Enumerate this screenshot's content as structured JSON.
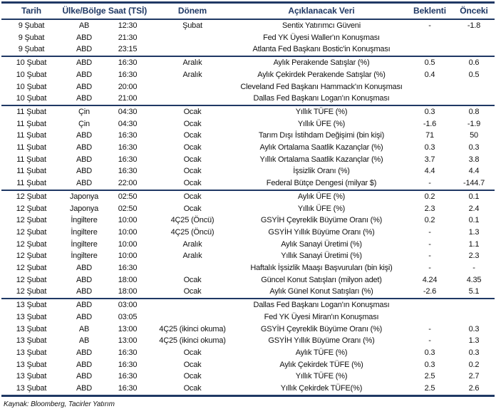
{
  "colors": {
    "navy": "#1F3864",
    "text": "#111111",
    "background": "#ffffff"
  },
  "table": {
    "column_keys": [
      "tarih",
      "ulke-bolge",
      "saat",
      "donem",
      "veri",
      "beklenti",
      "onceki"
    ],
    "columns": [
      "Tarih",
      "Ülke/Bölge",
      "Saat (TSİ)",
      "Dönem",
      "Açıklanacak Veri",
      "Beklenti",
      "Önceki"
    ],
    "rows": [
      {
        "group_start": false,
        "cells": [
          "9 Şubat",
          "AB",
          "12:30",
          "Şubat",
          "Sentix Yatırımcı Güveni",
          "-",
          "-1.8"
        ]
      },
      {
        "group_start": false,
        "cells": [
          "9 Şubat",
          "ABD",
          "21:30",
          "",
          "Fed YK Üyesi Waller'ın Konuşması",
          "",
          ""
        ]
      },
      {
        "group_start": false,
        "cells": [
          "9 Şubat",
          "ABD",
          "23:15",
          "",
          "Atlanta Fed Başkanı Bostic'in Konuşması",
          "",
          ""
        ]
      },
      {
        "group_start": true,
        "cells": [
          "10 Şubat",
          "ABD",
          "16:30",
          "Aralık",
          "Aylık Perakende Satışlar (%)",
          "0.5",
          "0.6"
        ]
      },
      {
        "group_start": false,
        "cells": [
          "10 Şubat",
          "ABD",
          "16:30",
          "Aralık",
          "Aylık Çekirdek Perakende Satışlar (%)",
          "0.4",
          "0.5"
        ]
      },
      {
        "group_start": false,
        "cells": [
          "10 Şubat",
          "ABD",
          "20:00",
          "",
          "Cleveland Fed Başkanı Hammack'ın Konuşması",
          "",
          ""
        ]
      },
      {
        "group_start": false,
        "cells": [
          "10 Şubat",
          "ABD",
          "21:00",
          "",
          "Dallas Fed Başkanı Logan'ın Konuşması",
          "",
          ""
        ]
      },
      {
        "group_start": true,
        "cells": [
          "11 Şubat",
          "Çin",
          "04:30",
          "Ocak",
          "Yıllık TÜFE (%)",
          "0.3",
          "0.8"
        ]
      },
      {
        "group_start": false,
        "cells": [
          "11 Şubat",
          "Çin",
          "04:30",
          "Ocak",
          "Yıllık ÜFE (%)",
          "-1.6",
          "-1.9"
        ]
      },
      {
        "group_start": false,
        "cells": [
          "11 Şubat",
          "ABD",
          "16:30",
          "Ocak",
          "Tarım Dışı İstihdam Değişimi (bin kişi)",
          "71",
          "50"
        ]
      },
      {
        "group_start": false,
        "cells": [
          "11 Şubat",
          "ABD",
          "16:30",
          "Ocak",
          "Aylık Ortalama Saatlik Kazançlar (%)",
          "0.3",
          "0.3"
        ]
      },
      {
        "group_start": false,
        "cells": [
          "11 Şubat",
          "ABD",
          "16:30",
          "Ocak",
          "Yıllık Ortalama Saatlik Kazançlar (%)",
          "3.7",
          "3.8"
        ]
      },
      {
        "group_start": false,
        "cells": [
          "11 Şubat",
          "ABD",
          "16:30",
          "Ocak",
          "İşsizlik Oranı (%)",
          "4.4",
          "4.4"
        ]
      },
      {
        "group_start": false,
        "cells": [
          "11 Şubat",
          "ABD",
          "22:00",
          "Ocak",
          "Federal Bütçe Dengesi (milyar $)",
          "-",
          "-144.7"
        ]
      },
      {
        "group_start": true,
        "cells": [
          "12 Şubat",
          "Japonya",
          "02:50",
          "Ocak",
          "Aylık ÜFE (%)",
          "0.2",
          "0.1"
        ]
      },
      {
        "group_start": false,
        "cells": [
          "12 Şubat",
          "Japonya",
          "02:50",
          "Ocak",
          "Yıllık ÜFE (%)",
          "2.3",
          "2.4"
        ]
      },
      {
        "group_start": false,
        "cells": [
          "12 Şubat",
          "İngiltere",
          "10:00",
          "4Ç25 (Öncü)",
          "GSYİH Çeyreklik Büyüme Oranı (%)",
          "0.2",
          "0.1"
        ]
      },
      {
        "group_start": false,
        "cells": [
          "12 Şubat",
          "İngiltere",
          "10:00",
          "4Ç25 (Öncü)",
          "GSYİH Yıllık Büyüme Oranı (%)",
          "-",
          "1.3"
        ]
      },
      {
        "group_start": false,
        "cells": [
          "12 Şubat",
          "İngiltere",
          "10:00",
          "Aralık",
          "Aylık Sanayi Üretimi (%)",
          "-",
          "1.1"
        ]
      },
      {
        "group_start": false,
        "cells": [
          "12 Şubat",
          "İngiltere",
          "10:00",
          "Aralık",
          "Yıllık Sanayi Üretimi (%)",
          "-",
          "2.3"
        ]
      },
      {
        "group_start": false,
        "cells": [
          "12 Şubat",
          "ABD",
          "16:30",
          "",
          "Haftalık İşsizlik Maaşı Başvuruları (bin kişi)",
          "-",
          "-"
        ]
      },
      {
        "group_start": false,
        "cells": [
          "12 Şubat",
          "ABD",
          "18:00",
          "Ocak",
          "Güncel Konut Satışları (milyon adet)",
          "4.24",
          "4.35"
        ]
      },
      {
        "group_start": false,
        "cells": [
          "12 Şubat",
          "ABD",
          "18:00",
          "Ocak",
          "Aylık Günel Konut Satışları (%)",
          "-2.6",
          "5.1"
        ]
      },
      {
        "group_start": true,
        "cells": [
          "13 Şubat",
          "ABD",
          "03:00",
          "",
          "Dallas Fed Başkanı Logan'ın Konuşması",
          "",
          ""
        ]
      },
      {
        "group_start": false,
        "cells": [
          "13 Şubat",
          "ABD",
          "03:05",
          "",
          "Fed YK Üyesi Miran'ın Konuşması",
          "",
          ""
        ]
      },
      {
        "group_start": false,
        "cells": [
          "13 Şubat",
          "AB",
          "13:00",
          "4Ç25 (ikinci okuma)",
          "GSYİH Çeyreklik Büyüme Oranı (%)",
          "-",
          "0.3"
        ]
      },
      {
        "group_start": false,
        "cells": [
          "13 Şubat",
          "AB",
          "13:00",
          "4Ç25 (ikinci okuma)",
          "GSYİH Yıllık Büyüme Oranı (%)",
          "-",
          "1.3"
        ]
      },
      {
        "group_start": false,
        "cells": [
          "13 Şubat",
          "ABD",
          "16:30",
          "Ocak",
          "Aylık TÜFE (%)",
          "0.3",
          "0.3"
        ]
      },
      {
        "group_start": false,
        "cells": [
          "13 Şubat",
          "ABD",
          "16:30",
          "Ocak",
          "Aylık Çekirdek TÜFE (%)",
          "0.3",
          "0.2"
        ]
      },
      {
        "group_start": false,
        "cells": [
          "13 Şubat",
          "ABD",
          "16:30",
          "Ocak",
          "Yıllık TÜFE (%)",
          "2.5",
          "2.7"
        ]
      },
      {
        "group_start": false,
        "cells": [
          "13 Şubat",
          "ABD",
          "16:30",
          "Ocak",
          "Yıllık Çekirdek TÜFE(%)",
          "2.5",
          "2.6"
        ]
      }
    ]
  },
  "footer": {
    "source": "Kaynak: Bloomberg, Tacirler Yatırım"
  }
}
